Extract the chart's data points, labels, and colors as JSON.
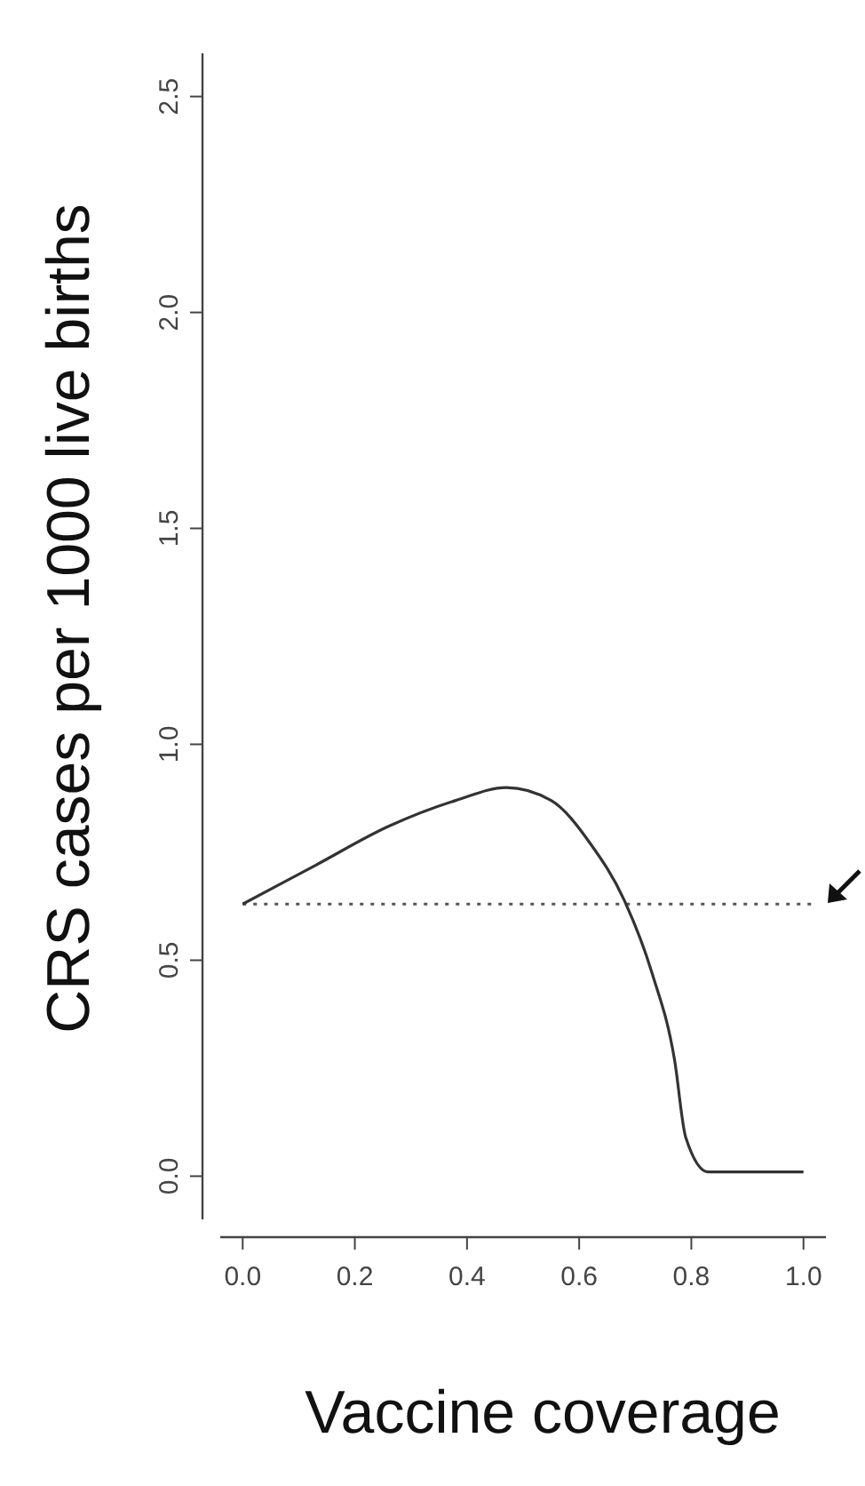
{
  "chart_data": {
    "type": "line",
    "xlabel": "Vaccine coverage",
    "ylabel": "CRS cases per 1000 live births",
    "x": [
      0,
      0.13,
      0.26,
      0.38,
      0.47,
      0.55,
      0.62,
      0.68,
      0.73,
      0.77,
      0.79,
      0.83,
      1.0
    ],
    "series": [
      {
        "color": "#333333",
        "values": [
          0.63,
          0.72,
          0.81,
          0.87,
          0.9,
          0.87,
          0.77,
          0.64,
          0.47,
          0.27,
          0.09,
          0.01,
          0.01
        ]
      }
    ],
    "ref_lines": [
      {
        "axis": "y",
        "value": 0.63,
        "line_style": "dotted",
        "color": "#555555"
      }
    ],
    "xlim": [
      -0.04,
      1.04
    ],
    "ylim": [
      -0.1,
      2.6
    ],
    "xticks": [
      {
        "value": 0,
        "label": "0.0"
      },
      0.2,
      0.4,
      0.6,
      0.8,
      {
        "value": 1,
        "label": "1.0"
      }
    ],
    "yticks": [
      {
        "value": 0,
        "label": "0.0"
      },
      0.5,
      {
        "value": 1,
        "label": "1.0"
      },
      1.5,
      {
        "value": 2,
        "label": "2.0"
      },
      2.5
    ],
    "grid": false,
    "marker": "none",
    "line_style": "solid"
  }
}
